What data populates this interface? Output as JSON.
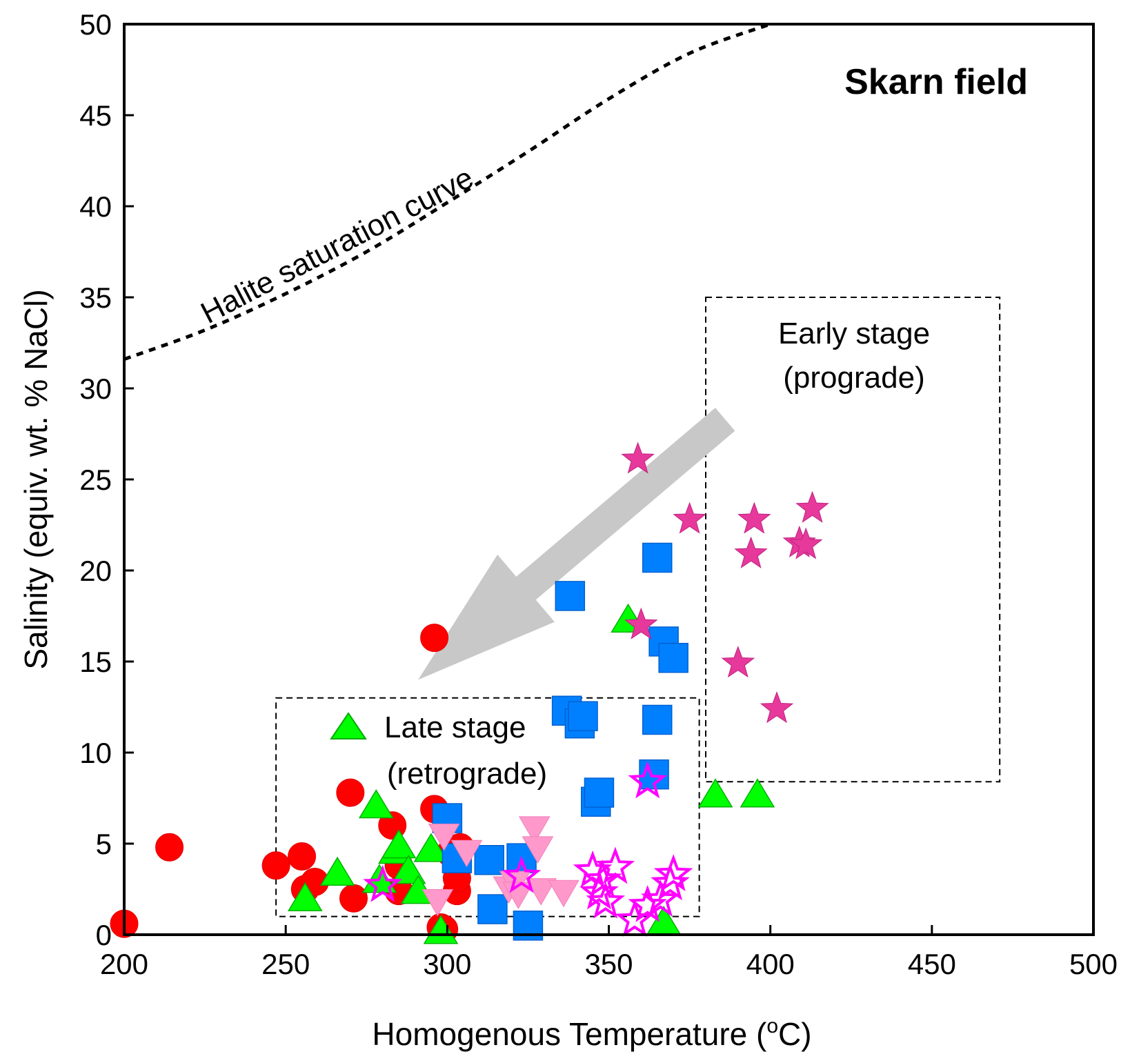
{
  "chart_data": {
    "type": "scatter",
    "title": "Skarn field",
    "xlabel": "Homogenous Temperature  (oC)",
    "xlabel_parts": {
      "main": "Homogenous Temperature  (",
      "superscript": "o",
      "unit": "C)"
    },
    "ylabel": "Salinity (equiv. wt. % NaCl)",
    "xlim": [
      200,
      500
    ],
    "ylim": [
      0,
      50
    ],
    "xticks": [
      "200",
      "250",
      "300",
      "350",
      "400",
      "450",
      "500"
    ],
    "yticks": [
      "0",
      "5",
      "10",
      "15",
      "20",
      "25",
      "30",
      "35",
      "40",
      "45",
      "50"
    ],
    "colors": {
      "red_circle": "#ff0000",
      "green_triangle": "#00ff00",
      "blue_square": "#0080ff",
      "pink_triangle_down": "#ff99cc",
      "magenta_star_filled": "#e6399b",
      "magenta_star_open": "#ff00ff",
      "arrow": "#c8c8c8"
    },
    "curve": {
      "label": "Halite saturation curve",
      "points": [
        [
          200,
          31.6
        ],
        [
          225,
          33.2
        ],
        [
          250,
          35.2
        ],
        [
          275,
          37.5
        ],
        [
          300,
          40.2
        ],
        [
          325,
          43.0
        ],
        [
          350,
          45.9
        ],
        [
          375,
          48.4
        ],
        [
          400,
          50.0
        ]
      ]
    },
    "regions": [
      {
        "label_line1": "Early stage",
        "label_line2": "(prograde)",
        "outline": [
          [
            380,
            35
          ],
          [
            471,
            35
          ],
          [
            471,
            8.4
          ],
          [
            380,
            8.4
          ]
        ]
      },
      {
        "label_line1": "Late stage",
        "label_line2": "(retrograde)",
        "outline": [
          [
            247,
            13.0
          ],
          [
            378,
            13.0
          ],
          [
            378,
            1.0
          ],
          [
            247,
            1.0
          ]
        ]
      }
    ],
    "arrow": {
      "from": [
        386,
        28.3
      ],
      "to": [
        291,
        14.0
      ]
    },
    "series": [
      {
        "name": "red circles",
        "marker": "circle",
        "color": "#ff0000",
        "points": [
          [
            200,
            0.6
          ],
          [
            214,
            4.8
          ],
          [
            247,
            3.8
          ],
          [
            255,
            4.3
          ],
          [
            256,
            2.5
          ],
          [
            259,
            2.9
          ],
          [
            271,
            2.0
          ],
          [
            270,
            7.8
          ],
          [
            283,
            6.0
          ],
          [
            285,
            3.8
          ],
          [
            285,
            2.4
          ],
          [
            296,
            16.3
          ],
          [
            296,
            6.9
          ],
          [
            298,
            0.4
          ],
          [
            299,
            0.3
          ],
          [
            301,
            4.5
          ],
          [
            303,
            2.4
          ],
          [
            303,
            3.1
          ],
          [
            304,
            4.8
          ]
        ]
      },
      {
        "name": "green triangles",
        "marker": "triangle-up",
        "color": "#00ff00",
        "points": [
          [
            256,
            2.0
          ],
          [
            266,
            3.4
          ],
          [
            278,
            7.1
          ],
          [
            279,
            3.0
          ],
          [
            284,
            4.6
          ],
          [
            285,
            4.9
          ],
          [
            288,
            3.5
          ],
          [
            291,
            2.4
          ],
          [
            295,
            4.7
          ],
          [
            298,
            0.2
          ],
          [
            356,
            17.3
          ],
          [
            367,
            0.7
          ],
          [
            383,
            7.7
          ],
          [
            396,
            7.7
          ]
        ]
      },
      {
        "name": "blue squares",
        "marker": "square",
        "color": "#0080ff",
        "points": [
          [
            300,
            6.4
          ],
          [
            303,
            4.2
          ],
          [
            313,
            4.1
          ],
          [
            314,
            1.4
          ],
          [
            323,
            4.2
          ],
          [
            325,
            0.5
          ],
          [
            337,
            12.3
          ],
          [
            338,
            18.6
          ],
          [
            341,
            11.6
          ],
          [
            342,
            12.0
          ],
          [
            346,
            7.3
          ],
          [
            347,
            7.8
          ],
          [
            365,
            20.7
          ],
          [
            365,
            11.8
          ],
          [
            364,
            8.8
          ],
          [
            367,
            16.1
          ],
          [
            370,
            15.2
          ]
        ]
      },
      {
        "name": "pink inverted triangles",
        "marker": "triangle-down",
        "color": "#ff99cc",
        "points": [
          [
            297,
            1.8
          ],
          [
            299,
            5.4
          ],
          [
            306,
            4.5
          ],
          [
            319,
            2.5
          ],
          [
            321,
            2.8
          ],
          [
            322,
            2.2
          ],
          [
            327,
            5.8
          ],
          [
            328,
            4.7
          ],
          [
            329,
            2.4
          ],
          [
            336,
            2.3
          ]
        ]
      },
      {
        "name": "filled stars",
        "marker": "star-filled",
        "color": "#e6399b",
        "points": [
          [
            359,
            26.1
          ],
          [
            360,
            17.0
          ],
          [
            375,
            22.8
          ],
          [
            390,
            14.9
          ],
          [
            394,
            20.9
          ],
          [
            395,
            22.8
          ],
          [
            402,
            12.4
          ],
          [
            409,
            21.5
          ],
          [
            411,
            21.4
          ],
          [
            413,
            23.4
          ]
        ]
      },
      {
        "name": "open stars",
        "marker": "star-open",
        "color": "#ff00ff",
        "points": [
          [
            280,
            2.7
          ],
          [
            323,
            3.2
          ],
          [
            345,
            3.5
          ],
          [
            347,
            2.3
          ],
          [
            348,
            3.0
          ],
          [
            352,
            3.7
          ],
          [
            349,
            1.8
          ],
          [
            358,
            0.8
          ],
          [
            362,
            1.6
          ],
          [
            362,
            8.4
          ],
          [
            366,
            1.9
          ],
          [
            369,
            2.8
          ],
          [
            370,
            3.3
          ]
        ]
      }
    ]
  }
}
